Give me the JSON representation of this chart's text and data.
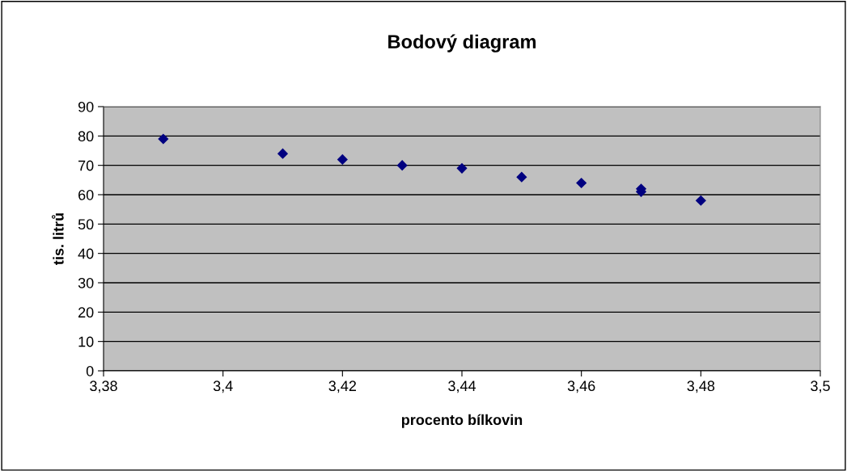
{
  "chart_data": {
    "type": "scatter",
    "title": "Bodový diagram",
    "xlabel": "procento bílkovin",
    "ylabel": "tis. litrů",
    "series": [
      {
        "color": "#000080",
        "x": [
          3.39,
          3.41,
          3.42,
          3.43,
          3.44,
          3.45,
          3.46,
          3.47,
          3.47,
          3.48
        ],
        "values": [
          79,
          74,
          72,
          70,
          69,
          66,
          64,
          62,
          61,
          58
        ]
      }
    ],
    "marker": "diamond",
    "grid": "y",
    "legend": false,
    "xlim": [
      3.38,
      3.5
    ],
    "xticks": [
      {
        "value": 3.38,
        "label": "3,38"
      },
      {
        "value": 3.4,
        "label": "3,4"
      },
      {
        "value": 3.42,
        "label": "3,42"
      },
      {
        "value": 3.44,
        "label": "3,44"
      },
      {
        "value": 3.46,
        "label": "3,46"
      },
      {
        "value": 3.48,
        "label": "3,48"
      },
      {
        "value": 3.5,
        "label": "3,5"
      }
    ],
    "ylim": [
      0,
      90
    ],
    "yticks": [
      0,
      10,
      20,
      30,
      40,
      50,
      60,
      70,
      80,
      90
    ]
  }
}
